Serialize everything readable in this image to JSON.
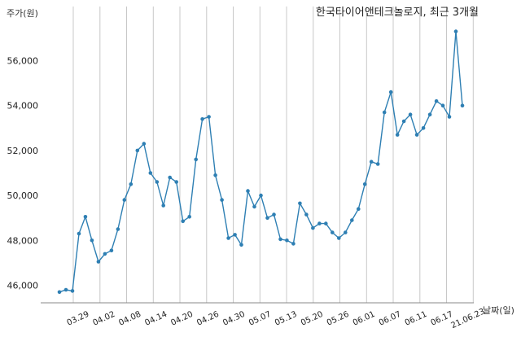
{
  "chart_data": {
    "type": "line",
    "title": "한국타이어앤테크놀로지, 최근 3개월",
    "ylabel": "주가(원)",
    "xlabel": "날짜(일)",
    "ylim": [
      45200,
      57800
    ],
    "y_ticks": [
      46000,
      48000,
      50000,
      52000,
      54000,
      56000
    ],
    "y_tick_labels": [
      "46,000",
      "48,000",
      "50,000",
      "52,000",
      "54,000",
      "56,000"
    ],
    "x_tick_labels": [
      "03.29",
      "04.02",
      "04.08",
      "04.14",
      "04.20",
      "04.26",
      "04.30",
      "05.07",
      "05.13",
      "05.20",
      "05.26",
      "06.01",
      "06.07",
      "06.11",
      "06.17",
      "21.06.23"
    ],
    "x_tick_indices": [
      3,
      7,
      11,
      15,
      19,
      23,
      27,
      31,
      35,
      39,
      43,
      47,
      51,
      55,
      59,
      63
    ],
    "grid": "vertical",
    "color": "#2e7fb3",
    "series": [
      {
        "values": [
          45700,
          45800,
          45750,
          48300,
          49050,
          48000,
          47050,
          47400,
          47550,
          48500,
          49800,
          50500,
          52000,
          52300,
          51000,
          50600,
          49550,
          50800,
          50600,
          48850,
          49050,
          51600,
          53400,
          53500,
          50900,
          49800,
          48100,
          48250,
          47800,
          50200,
          49500,
          50000,
          49000,
          49150,
          48050,
          48000,
          47850,
          49650,
          49150,
          48550,
          48750,
          48750,
          48350,
          48100,
          48350,
          48900,
          49400,
          50500,
          51500,
          51400,
          53700,
          54600,
          52700,
          53300,
          53600,
          52700,
          53000,
          53600,
          54200,
          54000,
          53500,
          57300,
          54000
        ]
      }
    ]
  }
}
